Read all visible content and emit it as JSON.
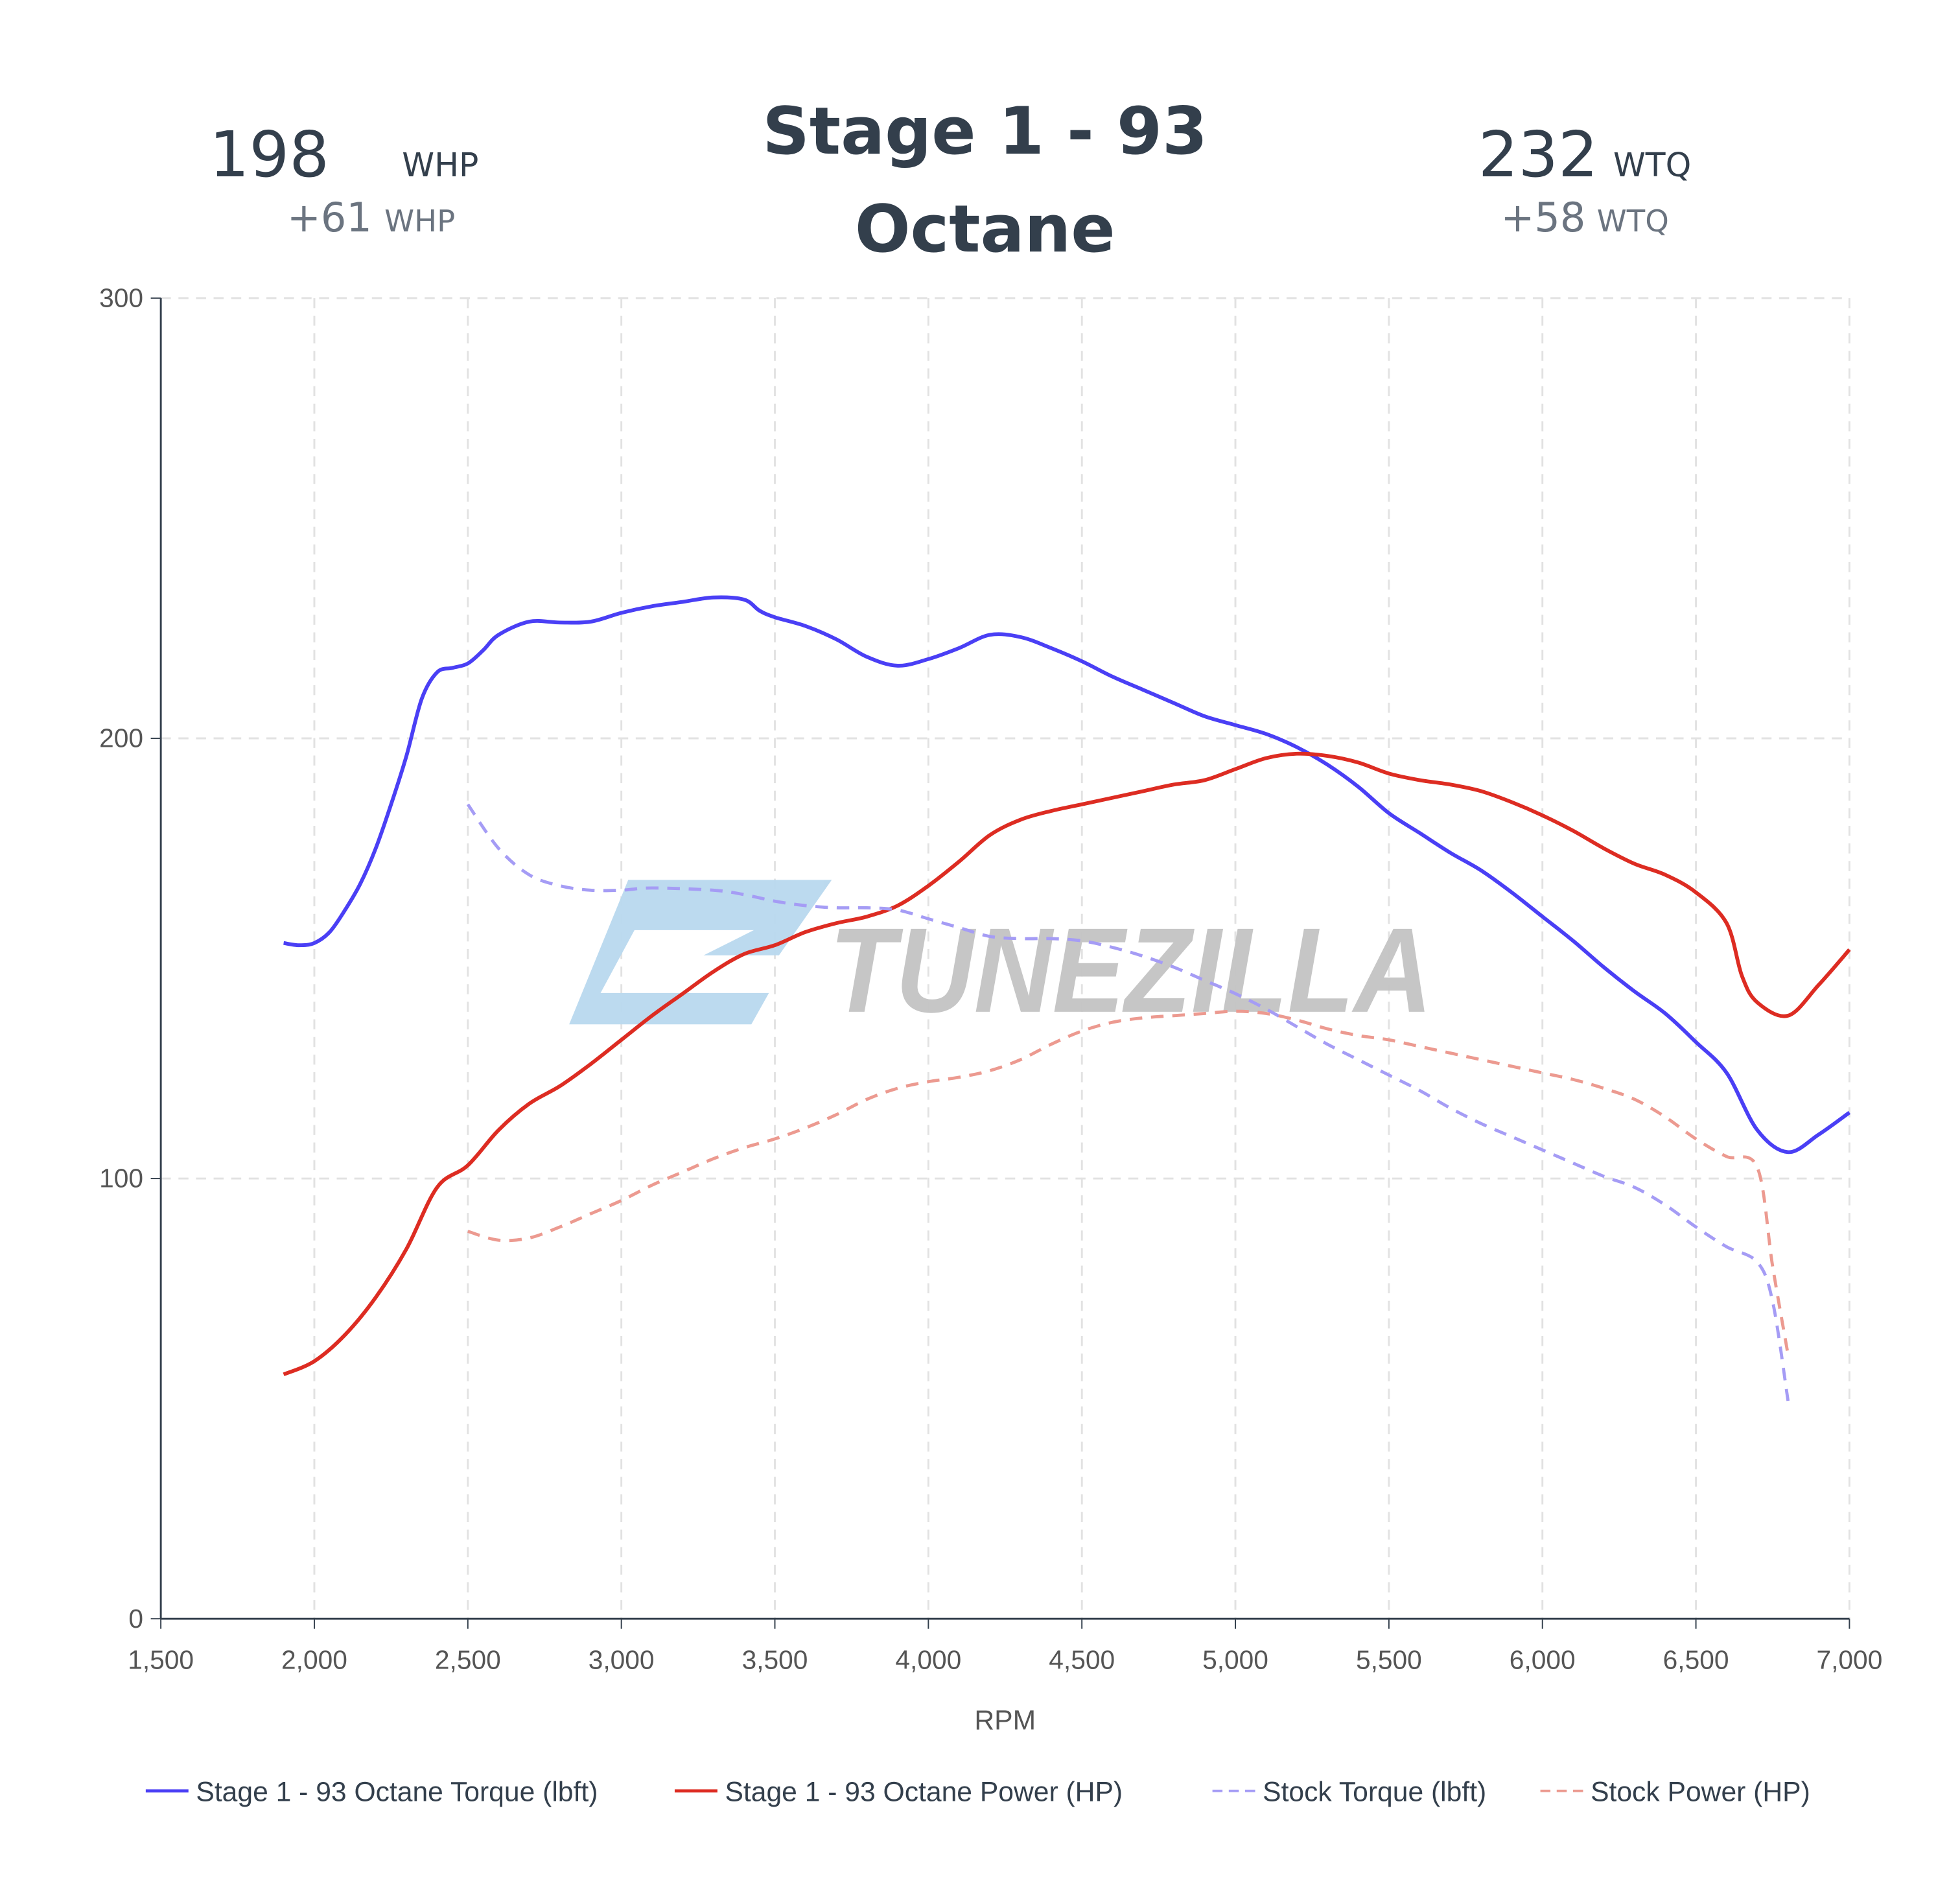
{
  "header": {
    "title_line1": "Stage 1 - 93",
    "title_line2": "Octane",
    "hp": {
      "value": "198",
      "unit": "WHP",
      "gain": "+61",
      "gain_unit": "WHP"
    },
    "tq": {
      "value": "232",
      "unit": "WTQ",
      "gain": "+58",
      "gain_unit": "WTQ"
    }
  },
  "watermark": "TUNEZILLA",
  "colors": {
    "text": "#333f4c",
    "subtext": "#6b7480",
    "stage_torque": "#4a3ff5",
    "stage_power": "#dd2c22",
    "stock_torque": "#a59cf5",
    "stock_power": "#ec9a90",
    "logo_blue": "#b8d8ee",
    "logo_grey": "#c4c4c4"
  },
  "chart_data": {
    "type": "line",
    "xlabel": "RPM",
    "ylabel": "",
    "xlim": [
      1500,
      7000
    ],
    "ylim": [
      0,
      300
    ],
    "grid": true,
    "legend_position": "bottom",
    "x_ticks": [
      "1,500",
      "2,000",
      "2,500",
      "3,000",
      "3,500",
      "4,000",
      "4,500",
      "5,000",
      "5,500",
      "6,000",
      "6,500",
      "7,000"
    ],
    "y_ticks": [
      "0",
      "100",
      "200",
      "300"
    ],
    "series": [
      {
        "name": "Stage 1 - 93 Octane Torque (lbft)",
        "dash": false,
        "color": "#4a3ff5",
        "points": [
          [
            1900,
            153.5
          ],
          [
            1950,
            153
          ],
          [
            2000,
            153.5
          ],
          [
            2050,
            156
          ],
          [
            2100,
            161
          ],
          [
            2150,
            167
          ],
          [
            2200,
            175
          ],
          [
            2250,
            185
          ],
          [
            2300,
            196
          ],
          [
            2350,
            209
          ],
          [
            2400,
            215
          ],
          [
            2450,
            216
          ],
          [
            2500,
            217
          ],
          [
            2550,
            220
          ],
          [
            2600,
            223.5
          ],
          [
            2700,
            226.5
          ],
          [
            2800,
            226.3
          ],
          [
            2900,
            226.5
          ],
          [
            3000,
            228.5
          ],
          [
            3100,
            230
          ],
          [
            3200,
            231
          ],
          [
            3300,
            232
          ],
          [
            3400,
            231.5
          ],
          [
            3450,
            229
          ],
          [
            3500,
            227.5
          ],
          [
            3600,
            225.5
          ],
          [
            3700,
            222.5
          ],
          [
            3800,
            218.5
          ],
          [
            3900,
            216.5
          ],
          [
            4000,
            218
          ],
          [
            4100,
            220.5
          ],
          [
            4200,
            223.5
          ],
          [
            4300,
            223
          ],
          [
            4400,
            220.5
          ],
          [
            4500,
            217.5
          ],
          [
            4600,
            214
          ],
          [
            4700,
            211
          ],
          [
            4800,
            208
          ],
          [
            4900,
            205
          ],
          [
            5000,
            203
          ],
          [
            5100,
            201
          ],
          [
            5200,
            198
          ],
          [
            5300,
            194
          ],
          [
            5400,
            189
          ],
          [
            5500,
            183
          ],
          [
            5600,
            178.5
          ],
          [
            5700,
            174
          ],
          [
            5800,
            170
          ],
          [
            5900,
            165
          ],
          [
            6000,
            159.5
          ],
          [
            6100,
            154
          ],
          [
            6200,
            148
          ],
          [
            6300,
            142.5
          ],
          [
            6400,
            137.5
          ],
          [
            6500,
            131
          ],
          [
            6600,
            124
          ],
          [
            6700,
            111
          ],
          [
            6800,
            106
          ],
          [
            6900,
            110
          ],
          [
            7000,
            115
          ]
        ]
      },
      {
        "name": "Stage 1 - 93 Octane Power (HP)",
        "dash": false,
        "color": "#dd2c22",
        "points": [
          [
            1900,
            55.5
          ],
          [
            2000,
            58.5
          ],
          [
            2100,
            64.5
          ],
          [
            2200,
            73
          ],
          [
            2300,
            84
          ],
          [
            2400,
            98
          ],
          [
            2500,
            103
          ],
          [
            2600,
            111
          ],
          [
            2700,
            117
          ],
          [
            2800,
            121
          ],
          [
            2900,
            126
          ],
          [
            3000,
            131.5
          ],
          [
            3100,
            137
          ],
          [
            3200,
            142
          ],
          [
            3300,
            147
          ],
          [
            3400,
            151
          ],
          [
            3500,
            153
          ],
          [
            3600,
            156
          ],
          [
            3700,
            158
          ],
          [
            3800,
            159.5
          ],
          [
            3900,
            162
          ],
          [
            4000,
            166.5
          ],
          [
            4100,
            172
          ],
          [
            4200,
            178
          ],
          [
            4300,
            181.5
          ],
          [
            4400,
            183.5
          ],
          [
            4500,
            185
          ],
          [
            4600,
            186.5
          ],
          [
            4700,
            188
          ],
          [
            4800,
            189.5
          ],
          [
            4900,
            190.5
          ],
          [
            5000,
            193
          ],
          [
            5100,
            195.5
          ],
          [
            5200,
            196.5
          ],
          [
            5300,
            196
          ],
          [
            5400,
            194.5
          ],
          [
            5500,
            192
          ],
          [
            5600,
            190.5
          ],
          [
            5700,
            189.5
          ],
          [
            5800,
            188
          ],
          [
            5900,
            185.5
          ],
          [
            6000,
            182.5
          ],
          [
            6100,
            179
          ],
          [
            6200,
            175
          ],
          [
            6300,
            171.5
          ],
          [
            6400,
            169
          ],
          [
            6500,
            165
          ],
          [
            6600,
            158
          ],
          [
            6650,
            146
          ],
          [
            6700,
            140
          ],
          [
            6800,
            137
          ],
          [
            6900,
            144
          ],
          [
            7000,
            152
          ]
        ]
      },
      {
        "name": "Stock Torque (lbft)",
        "dash": true,
        "color": "#a59cf5",
        "points": [
          [
            2500,
            185
          ],
          [
            2600,
            175
          ],
          [
            2700,
            169
          ],
          [
            2800,
            166.5
          ],
          [
            2900,
            165.5
          ],
          [
            3000,
            165.5
          ],
          [
            3100,
            166
          ],
          [
            3300,
            165.5
          ],
          [
            3400,
            164.5
          ],
          [
            3500,
            163
          ],
          [
            3600,
            162
          ],
          [
            3700,
            161.5
          ],
          [
            3800,
            161.5
          ],
          [
            3900,
            161
          ],
          [
            4000,
            159
          ],
          [
            4100,
            157
          ],
          [
            4200,
            155
          ],
          [
            4300,
            154.5
          ],
          [
            4400,
            154.5
          ],
          [
            4500,
            154
          ],
          [
            4600,
            152.5
          ],
          [
            4700,
            150.5
          ],
          [
            4800,
            148
          ],
          [
            4900,
            145
          ],
          [
            5000,
            142
          ],
          [
            5100,
            138.5
          ],
          [
            5200,
            134.5
          ],
          [
            5300,
            130.5
          ],
          [
            5400,
            127
          ],
          [
            5500,
            123.5
          ],
          [
            5600,
            120
          ],
          [
            5700,
            116
          ],
          [
            5800,
            112.5
          ],
          [
            5900,
            109.5
          ],
          [
            6000,
            106.5
          ],
          [
            6100,
            103.5
          ],
          [
            6200,
            100.5
          ],
          [
            6300,
            98
          ],
          [
            6400,
            94
          ],
          [
            6500,
            89
          ],
          [
            6600,
            84.5
          ],
          [
            6700,
            81
          ],
          [
            6750,
            72
          ],
          [
            6800,
            49.5
          ]
        ]
      },
      {
        "name": "Stock Power (HP)",
        "dash": true,
        "color": "#ec9a90",
        "points": [
          [
            2500,
            88
          ],
          [
            2600,
            86
          ],
          [
            2700,
            86.5
          ],
          [
            2800,
            89
          ],
          [
            2900,
            92
          ],
          [
            3000,
            95
          ],
          [
            3100,
            98.5
          ],
          [
            3200,
            101.5
          ],
          [
            3300,
            104.5
          ],
          [
            3400,
            107
          ],
          [
            3500,
            109
          ],
          [
            3600,
            111.5
          ],
          [
            3700,
            114.5
          ],
          [
            3800,
            118
          ],
          [
            3900,
            120.5
          ],
          [
            4000,
            122
          ],
          [
            4100,
            123
          ],
          [
            4200,
            124.5
          ],
          [
            4300,
            127
          ],
          [
            4400,
            130.5
          ],
          [
            4500,
            133.5
          ],
          [
            4600,
            135.5
          ],
          [
            4700,
            136.5
          ],
          [
            4800,
            137
          ],
          [
            4900,
            137.5
          ],
          [
            5000,
            138
          ],
          [
            5100,
            137.5
          ],
          [
            5200,
            136
          ],
          [
            5300,
            134
          ],
          [
            5400,
            132.5
          ],
          [
            5500,
            131.5
          ],
          [
            5600,
            130
          ],
          [
            5700,
            128.5
          ],
          [
            5800,
            127
          ],
          [
            5900,
            125.5
          ],
          [
            6000,
            124
          ],
          [
            6100,
            122.5
          ],
          [
            6200,
            120.5
          ],
          [
            6300,
            118
          ],
          [
            6400,
            114
          ],
          [
            6500,
            109
          ],
          [
            6600,
            105
          ],
          [
            6700,
            102.5
          ],
          [
            6750,
            80
          ],
          [
            6800,
            60
          ]
        ]
      }
    ]
  }
}
